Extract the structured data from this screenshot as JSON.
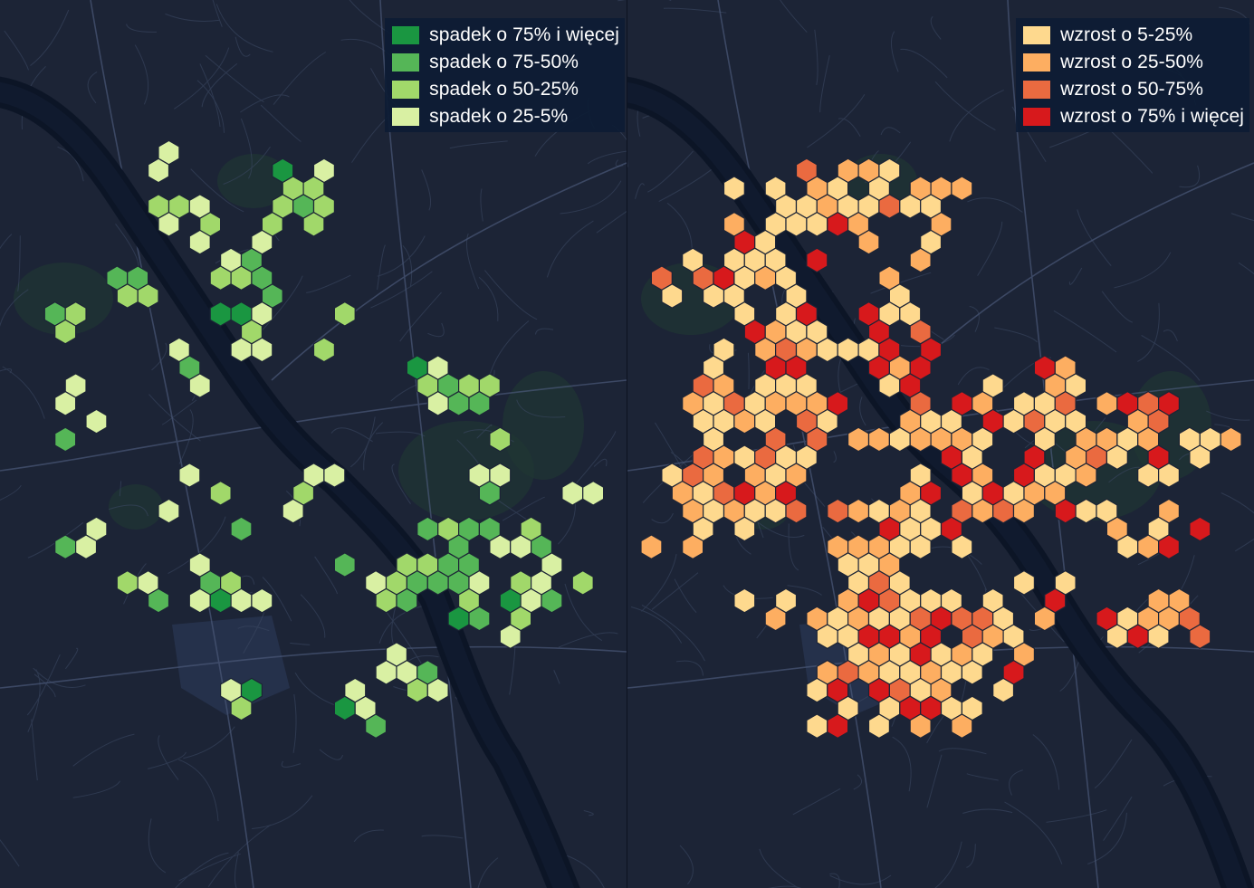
{
  "palette": {
    "background": "#1c2436",
    "water": "#0c1526",
    "park": "#1f3633",
    "road": "#3b4862",
    "airport": "#283551"
  },
  "left_map": {
    "legend": [
      {
        "label": "spadek o 75% i więcej",
        "color": "#1a9641"
      },
      {
        "label": "spadek o 75-50%",
        "color": "#55b657"
      },
      {
        "label": "spadek o 50-25%",
        "color": "#a1d86a"
      },
      {
        "label": "spadek o 25-5%",
        "color": "#d9f0a3"
      }
    ]
  },
  "right_map": {
    "legend": [
      {
        "label": "wzrost o 5-25%",
        "color": "#fed98e"
      },
      {
        "label": "wzrost o 25-50%",
        "color": "#fdae61"
      },
      {
        "label": "wzrost o 50-75%",
        "color": "#ea6a40"
      },
      {
        "label": "wzrost o 75% i więcej",
        "color": "#d7191c"
      }
    ]
  }
}
